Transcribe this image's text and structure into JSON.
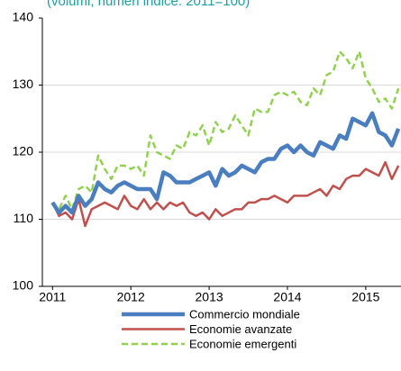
{
  "chart_data": {
    "type": "line",
    "subtitle": "(volumi; numeri indice: 2011=100)",
    "x": [
      2011,
      2011.083,
      2011.167,
      2011.25,
      2011.333,
      2011.417,
      2011.5,
      2011.583,
      2011.667,
      2011.75,
      2011.833,
      2011.917,
      2012,
      2012.083,
      2012.167,
      2012.25,
      2012.333,
      2012.417,
      2012.5,
      2012.583,
      2012.667,
      2012.75,
      2012.833,
      2012.917,
      2013,
      2013.083,
      2013.167,
      2013.25,
      2013.333,
      2013.417,
      2013.5,
      2013.583,
      2013.667,
      2013.75,
      2013.833,
      2013.917,
      2014,
      2014.083,
      2014.167,
      2014.25,
      2014.333,
      2014.417,
      2014.5,
      2014.583,
      2014.667,
      2014.75,
      2014.833,
      2014.917,
      2015,
      2015.083,
      2015.167,
      2015.25,
      2015.333,
      2015.417
    ],
    "series": [
      {
        "name": "Commercio mondiale",
        "color": "#4a7ebf",
        "style": "solid",
        "values": [
          112.5,
          111,
          112,
          111,
          113.5,
          112,
          113,
          115.5,
          114.5,
          114,
          115,
          115.5,
          115,
          114.5,
          114.5,
          114.5,
          113,
          117,
          116.5,
          115.5,
          115.5,
          115.5,
          116,
          116.5,
          117,
          115,
          117.5,
          116.5,
          117,
          118,
          117.5,
          117,
          118.5,
          119,
          119,
          120.5,
          121,
          120,
          121,
          120,
          119.5,
          121.5,
          121,
          120.5,
          122.5,
          122,
          125,
          124.5,
          124,
          125.8,
          123,
          122.5,
          121,
          123.5
        ]
      },
      {
        "name": "Economie avanzate",
        "color": "#c0504d",
        "style": "solid",
        "values": [
          112.5,
          110.5,
          111,
          110,
          113,
          109,
          111.5,
          112,
          112.5,
          112,
          111.5,
          113.5,
          112,
          111.5,
          113,
          111.5,
          112.5,
          111.5,
          112.5,
          112,
          112.5,
          111,
          110.5,
          111,
          110,
          111.5,
          110.5,
          111,
          111.5,
          111.5,
          112.5,
          112.5,
          113,
          113,
          113.5,
          113,
          112.5,
          113.5,
          113.5,
          113.5,
          114,
          114.5,
          113.5,
          115,
          114.5,
          116,
          116.5,
          116.5,
          117.5,
          117,
          116.5,
          118.5,
          116,
          118
        ]
      },
      {
        "name": "Economie emergenti",
        "color": "#92d050",
        "style": "dashed",
        "values": [
          112.5,
          111.5,
          113.5,
          111.5,
          114.5,
          115,
          114,
          119.5,
          117.5,
          116,
          118,
          118,
          117.5,
          118,
          116.5,
          122.5,
          120,
          119.5,
          119,
          121,
          120.5,
          123,
          122.5,
          124,
          121,
          124.5,
          123,
          123.5,
          125.5,
          124,
          122.5,
          126.5,
          126,
          126,
          128.5,
          129,
          128.5,
          129,
          127.5,
          127,
          129.5,
          128.5,
          131.5,
          132,
          135,
          134,
          132.5,
          135,
          131,
          129.5,
          127.5,
          128,
          126.5,
          129.5
        ]
      }
    ],
    "xlim": [
      2010.87,
      2015.45
    ],
    "xticks": [
      2011,
      2012,
      2013,
      2014,
      2015
    ],
    "ylim": [
      100,
      140
    ],
    "yticks": [
      100,
      110,
      120,
      130,
      140
    ],
    "grid": true,
    "legend": "bottom"
  }
}
